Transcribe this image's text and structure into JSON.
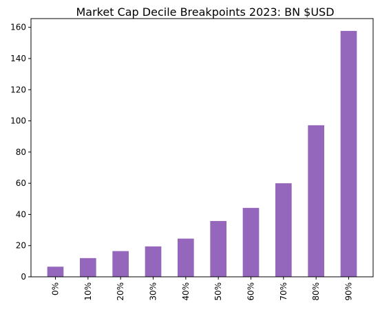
{
  "chart_data": {
    "type": "bar",
    "title": "Market Cap Decile Breakpoints 2023: BN $USD",
    "xlabel": "",
    "ylabel": "",
    "categories": [
      "0%",
      "10%",
      "20%",
      "30%",
      "40%",
      "50%",
      "60%",
      "70%",
      "80%",
      "90%"
    ],
    "values": [
      6.5,
      12.0,
      16.5,
      19.5,
      24.5,
      35.8,
      44.2,
      60.0,
      97.2,
      157.7
    ],
    "ylim": [
      0,
      165.6
    ],
    "yticks": [
      0,
      20,
      40,
      60,
      80,
      100,
      120,
      140,
      160
    ],
    "bar_color": "#9467bd",
    "grid": false,
    "legend": "none"
  }
}
